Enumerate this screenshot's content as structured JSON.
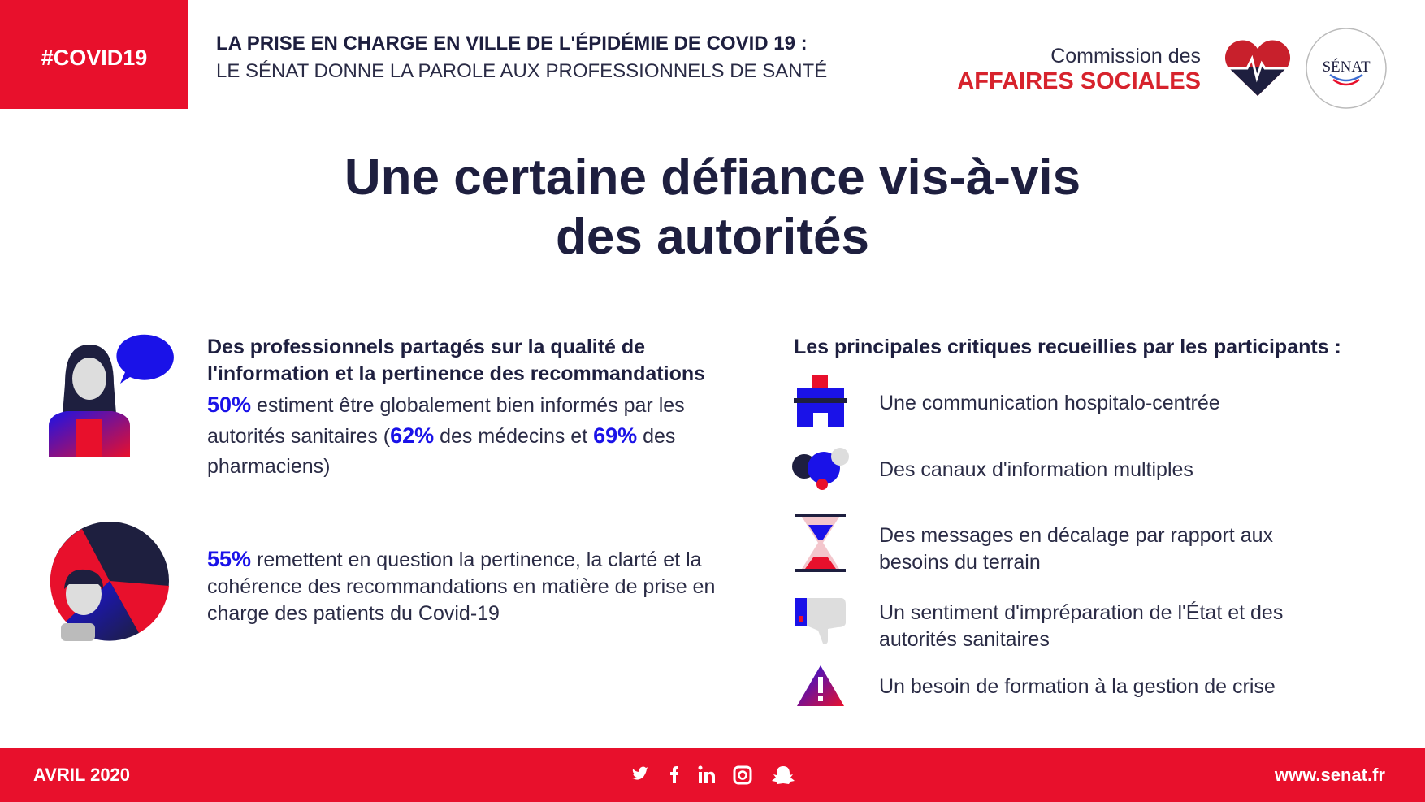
{
  "header": {
    "tag": "#COVID19",
    "title": "LA PRISE EN CHARGE EN VILLE DE L'ÉPIDÉMIE DE COVID 19 :",
    "subtitle": "LE SÉNAT DONNE LA PAROLE AUX PROFESSIONNELS DE SANTÉ",
    "org_line1": "Commission des",
    "org_line2": "AFFAIRES SOCIALES",
    "logo": "SÉNAT"
  },
  "title_lines": [
    "Une certaine défiance vis-à-vis",
    "des autorités"
  ],
  "left": {
    "heading": "Des professionnels partagés sur la qualité de l'information et la pertinence des recommandations",
    "stat1": [
      "50%",
      " estiment être globalement bien informés par les autorités sanitaires (",
      "62%",
      " des médecins et ",
      "69%",
      " des pharmaciens)"
    ],
    "stat2": [
      "55%",
      " remettent en question la pertinence, la clarté et la cohérence des recommandations en matière de prise en charge des patients du Covid-19"
    ]
  },
  "right": {
    "heading": "Les principales critiques recueillies par les participants :",
    "items": [
      "Une communication hospitalo-centrée",
      "Des canaux d'information multiples",
      "Des messages en décalage par rapport aux besoins du terrain",
      "Un sentiment d'impréparation de l'État et des autorités sanitaires",
      "Un besoin de formation à la gestion de crise"
    ]
  },
  "footer": {
    "date": "AVRIL 2020",
    "url": "www.senat.fr"
  }
}
